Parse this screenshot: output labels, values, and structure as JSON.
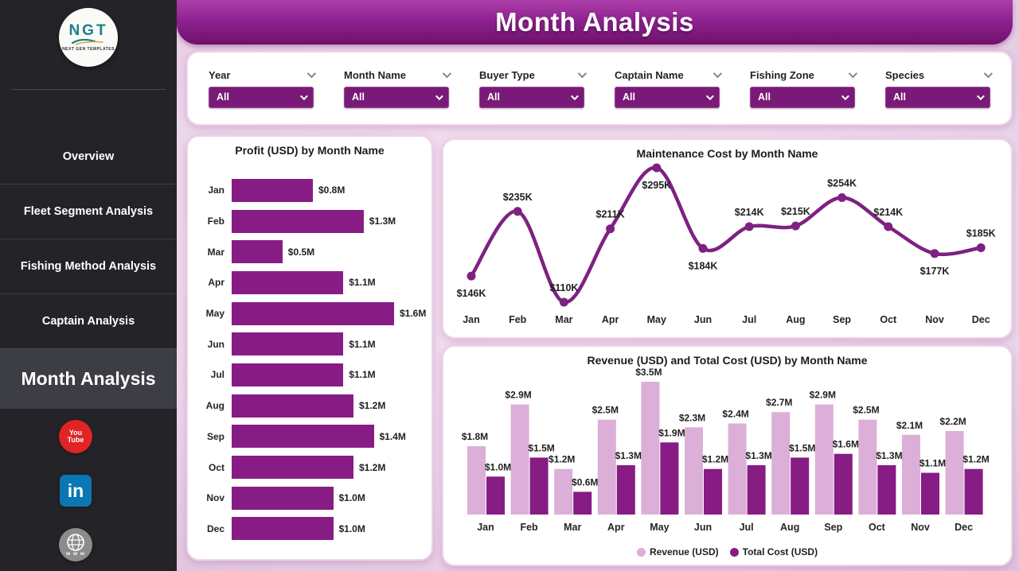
{
  "sidebar": {
    "logo": {
      "text": "NGT",
      "subtext": "NEXT GEN TEMPLATES"
    },
    "items": [
      {
        "label": "Overview",
        "active": false
      },
      {
        "label": "Fleet Segment Analysis",
        "active": false
      },
      {
        "label": "Fishing Method Analysis",
        "active": false
      },
      {
        "label": "Captain Analysis",
        "active": false
      },
      {
        "label": "Month Analysis",
        "active": true
      }
    ],
    "social": [
      {
        "name": "youtube",
        "text_top": "You",
        "text_bottom": "Tube"
      },
      {
        "name": "linkedin",
        "text": "in"
      },
      {
        "name": "website",
        "text": "www"
      }
    ]
  },
  "header": {
    "title": "Month Analysis"
  },
  "filters": [
    {
      "label": "Year",
      "value": "All"
    },
    {
      "label": "Month Name",
      "value": "All"
    },
    {
      "label": "Buyer Type",
      "value": "All"
    },
    {
      "label": "Captain Name",
      "value": "All"
    },
    {
      "label": "Fishing Zone",
      "value": "All"
    },
    {
      "label": "Species",
      "value": "All"
    }
  ],
  "colors": {
    "bar_dark": "#871C84",
    "bar_light": "#DBAFD8",
    "line": "#7E2182",
    "dropdown": "#7A1A78",
    "label_text": "#1f1f1f",
    "axis_text": "#252423"
  },
  "chart_data": [
    {
      "id": "profit",
      "type": "bar",
      "orientation": "horizontal",
      "title": "Profit (USD) by Month Name",
      "categories": [
        "Jan",
        "Feb",
        "Mar",
        "Apr",
        "May",
        "Jun",
        "Jul",
        "Aug",
        "Sep",
        "Oct",
        "Nov",
        "Dec"
      ],
      "values": [
        0.8,
        1.3,
        0.5,
        1.1,
        1.6,
        1.1,
        1.1,
        1.2,
        1.4,
        1.2,
        1.0,
        1.0
      ],
      "labels": [
        "$0.8M",
        "$1.3M",
        "$0.5M",
        "$1.1M",
        "$1.6M",
        "$1.1M",
        "$1.1M",
        "$1.2M",
        "$1.4M",
        "$1.2M",
        "$1.0M",
        "$1.0M"
      ],
      "unit": "USD millions",
      "xlim": [
        0,
        1.6
      ],
      "grid": false
    },
    {
      "id": "maintenance",
      "type": "line",
      "title": "Maintenance Cost by Month Name",
      "categories": [
        "Jan",
        "Feb",
        "Mar",
        "Apr",
        "May",
        "Jun",
        "Jul",
        "Aug",
        "Sep",
        "Oct",
        "Nov",
        "Dec"
      ],
      "values": [
        146,
        235,
        110,
        211,
        295,
        184,
        214,
        215,
        254,
        214,
        177,
        185
      ],
      "labels": [
        "$146K",
        "$235K",
        "$110K",
        "$211K",
        "$295K",
        "$184K",
        "$214K",
        "$215K",
        "$254K",
        "$214K",
        "$177K",
        "$185K"
      ],
      "label_placements": [
        "below",
        "above",
        "above",
        "above",
        "below",
        "below",
        "above",
        "above",
        "above",
        "above",
        "below",
        "above"
      ],
      "unit": "USD thousands",
      "ylim": [
        100,
        305
      ],
      "grid": false
    },
    {
      "id": "revenue_cost",
      "type": "bar",
      "orientation": "vertical",
      "title": "Revenue (USD) and Total Cost (USD) by Month Name",
      "categories": [
        "Jan",
        "Feb",
        "Mar",
        "Apr",
        "May",
        "Jun",
        "Jul",
        "Aug",
        "Sep",
        "Oct",
        "Nov",
        "Dec"
      ],
      "series": [
        {
          "name": "Revenue (USD)",
          "color": "#DBAFD8",
          "values": [
            1.8,
            2.9,
            1.2,
            2.5,
            3.5,
            2.3,
            2.4,
            2.7,
            2.9,
            2.5,
            2.1,
            2.2
          ],
          "labels": [
            "$1.8M",
            "$2.9M",
            "$1.2M",
            "$2.5M",
            "$3.5M",
            "$2.3M",
            "$2.4M",
            "$2.7M",
            "$2.9M",
            "$2.5M",
            "$2.1M",
            "$2.2M"
          ]
        },
        {
          "name": "Total Cost (USD)",
          "color": "#871C84",
          "values": [
            1.0,
            1.5,
            0.6,
            1.3,
            1.9,
            1.2,
            1.3,
            1.5,
            1.6,
            1.3,
            1.1,
            1.2
          ],
          "labels": [
            "$1.0M",
            "$1.5M",
            "$0.6M",
            "$1.3M",
            "$1.9M",
            "$1.2M",
            "$1.3M",
            "$1.5M",
            "$1.6M",
            "$1.3M",
            "$1.1M",
            "$1.2M"
          ]
        }
      ],
      "unit": "USD millions",
      "ylim": [
        0,
        3.5
      ],
      "legend_position": "bottom",
      "grid": false
    }
  ]
}
